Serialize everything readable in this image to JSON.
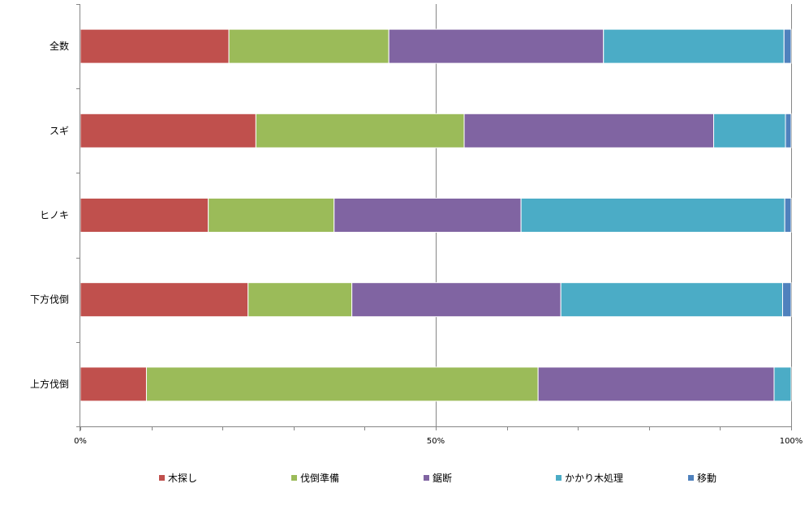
{
  "chart_data": {
    "type": "bar",
    "orientation": "horizontal",
    "stacked": "percent",
    "categories": [
      "全数",
      "スギ",
      "ヒノキ",
      "下方伐倒",
      "上方伐倒"
    ],
    "series": [
      {
        "name": "木探し",
        "color": "#c0504d",
        "values": [
          20.9,
          24.7,
          18.0,
          23.6,
          9.3
        ]
      },
      {
        "name": "伐倒準備",
        "color": "#9bbb59",
        "values": [
          22.5,
          29.3,
          17.7,
          14.6,
          55.1
        ]
      },
      {
        "name": "鋸断",
        "color": "#8064a2",
        "values": [
          30.2,
          35.1,
          26.3,
          29.4,
          33.2
        ]
      },
      {
        "name": "かかり木処理",
        "color": "#4bacc6",
        "values": [
          25.4,
          10.1,
          37.1,
          31.2,
          2.4
        ]
      },
      {
        "name": "移動",
        "color": "#4f81bd",
        "values": [
          1.0,
          0.8,
          0.9,
          1.2,
          0.0
        ]
      }
    ],
    "xlim": [
      0,
      100
    ],
    "xticks": [
      {
        "value": 0,
        "label": "0%"
      },
      {
        "value": 50,
        "label": "50%"
      },
      {
        "value": 100,
        "label": "100%"
      }
    ],
    "minor_tick_step": 10,
    "grid": {
      "major_vertical": true,
      "step": 50
    },
    "legend": {
      "position": "bottom"
    },
    "title": "",
    "xlabel": "",
    "ylabel": ""
  }
}
